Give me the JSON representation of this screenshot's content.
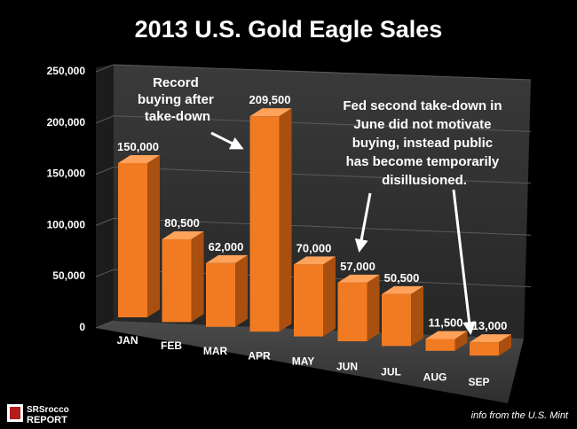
{
  "chart_data": {
    "type": "bar",
    "title": "2013 U.S. Gold Eagle Sales",
    "categories": [
      "JAN",
      "FEB",
      "MAR",
      "APR",
      "MAY",
      "JUN",
      "JUL",
      "AUG",
      "SEP"
    ],
    "values": [
      150000,
      80500,
      62000,
      209500,
      70000,
      57000,
      50500,
      11500,
      13000
    ],
    "data_labels": [
      "150,000",
      "80,500",
      "62,000",
      "209,500",
      "70,000",
      "57,000",
      "50,500",
      "11,500",
      "13,000"
    ],
    "ylim": [
      0,
      250000
    ],
    "yticks": [
      "0",
      "50,000",
      "100,000",
      "150,000",
      "200,000",
      "250,000"
    ],
    "xlabel": "",
    "ylabel": "",
    "grid": true,
    "bar_color": "#f07b22",
    "annotations": [
      {
        "lines": [
          "Record",
          "buying after",
          "take-down"
        ]
      },
      {
        "lines": [
          "Fed second take-down in",
          "June did not motivate",
          "buying, instead public",
          "has become temporarily",
          "disillusioned."
        ]
      }
    ]
  },
  "footer": {
    "credit": "info from the U.S. Mint",
    "logo_top": "SRSrocco",
    "logo_bottom": "REPORT"
  }
}
